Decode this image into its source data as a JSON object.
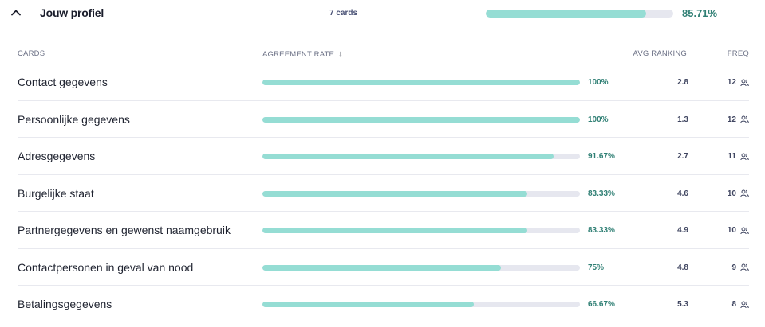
{
  "group": {
    "title": "Jouw profiel",
    "card_count": "7 cards",
    "progress": 0.8571,
    "percent_label": "85.71%"
  },
  "columns": {
    "cards": "CARDS",
    "agreement": "AGREEMENT RATE",
    "avg_ranking": "AVG RANKING",
    "freq": "FREQ"
  },
  "icons": {
    "collapse": "chevron-up-icon",
    "sort": "arrow-down-icon",
    "freq": "users-icon"
  },
  "colors": {
    "bar_fill": "#95ddd4",
    "bar_track": "#e6e7ef",
    "percent_text": "#2f7f74"
  },
  "rows": [
    {
      "name": "Contact gegevens",
      "rate": 1.0,
      "rate_label": "100%",
      "avg": "2.8",
      "freq": "12"
    },
    {
      "name": "Persoonlijke gegevens",
      "rate": 1.0,
      "rate_label": "100%",
      "avg": "1.3",
      "freq": "12"
    },
    {
      "name": "Adresgegevens",
      "rate": 0.9167,
      "rate_label": "91.67%",
      "avg": "2.7",
      "freq": "11"
    },
    {
      "name": "Burgelijke staat",
      "rate": 0.8333,
      "rate_label": "83.33%",
      "avg": "4.6",
      "freq": "10"
    },
    {
      "name": "Partnergegevens en gewenst naamgebruik",
      "rate": 0.8333,
      "rate_label": "83.33%",
      "avg": "4.9",
      "freq": "10"
    },
    {
      "name": "Contactpersonen in geval van nood",
      "rate": 0.75,
      "rate_label": "75%",
      "avg": "4.8",
      "freq": "9"
    },
    {
      "name": "Betalingsgegevens",
      "rate": 0.6667,
      "rate_label": "66.67%",
      "avg": "5.3",
      "freq": "8"
    }
  ]
}
